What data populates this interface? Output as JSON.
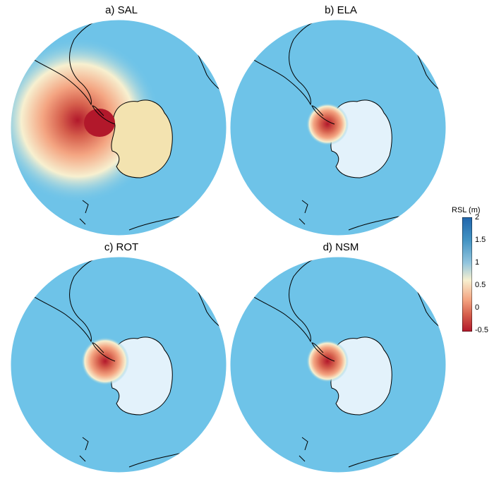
{
  "figure": {
    "panels": [
      {
        "title": "a) SAL"
      },
      {
        "title": "b) ELA"
      },
      {
        "title": "c) ROT"
      },
      {
        "title": "d) NSM"
      }
    ],
    "colorbar": {
      "label": "RSL (m)",
      "ticks": [
        "2",
        "1.5",
        "1",
        "0.5",
        "0",
        "-0.5"
      ],
      "range": [
        -0.5,
        2
      ],
      "colors": {
        "low": "#b2182b",
        "mid_low": "#ef8a62",
        "mid": "#f7f0d0",
        "mid_high": "#92c5de",
        "high": "#2166ac"
      }
    },
    "ocean_color": "#6ec3e8",
    "coastline_color": "#000000"
  }
}
